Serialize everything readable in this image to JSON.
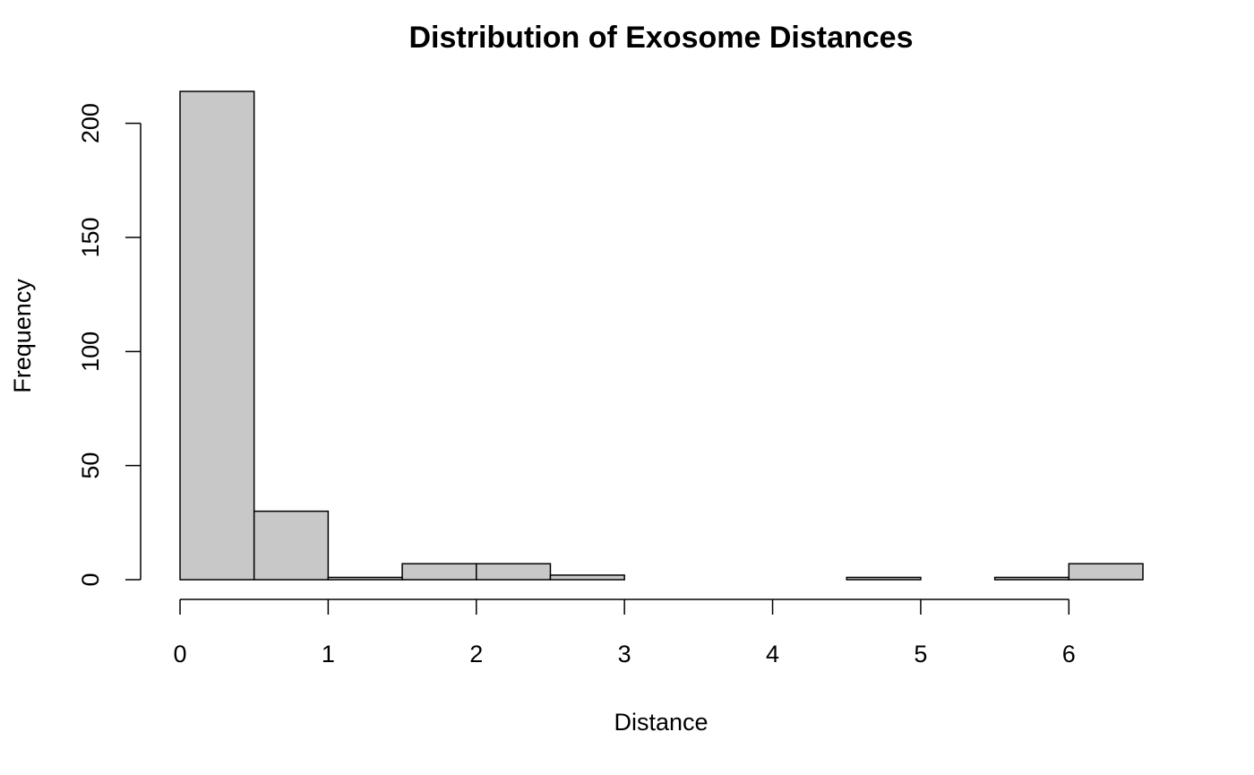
{
  "chart_data": {
    "type": "bar",
    "title": "Distribution of Exosome Distances",
    "xlabel": "Distance",
    "ylabel": "Frequency",
    "bin_edges": [
      0,
      0.5,
      1,
      1.5,
      2,
      2.5,
      3,
      3.5,
      4,
      4.5,
      5,
      5.5,
      6,
      6.5
    ],
    "values": [
      214,
      30,
      1,
      7,
      7,
      2,
      0,
      0,
      0,
      1,
      0,
      1,
      7
    ],
    "xlim": [
      0,
      6.5
    ],
    "ylim": [
      0,
      214
    ],
    "x_ticks": [
      0,
      1,
      2,
      3,
      4,
      5,
      6
    ],
    "x_tick_labels": [
      "0",
      "1",
      "2",
      "3",
      "4",
      "5",
      "6"
    ],
    "y_ticks": [
      0,
      50,
      100,
      150,
      200
    ],
    "y_tick_labels": [
      "0",
      "50",
      "100",
      "150",
      "200"
    ],
    "grid": false,
    "legend": "none",
    "colors": {
      "bar_fill": "#c8c8c8",
      "bar_stroke": "#000000",
      "axis": "#000000",
      "background": "#ffffff"
    }
  }
}
